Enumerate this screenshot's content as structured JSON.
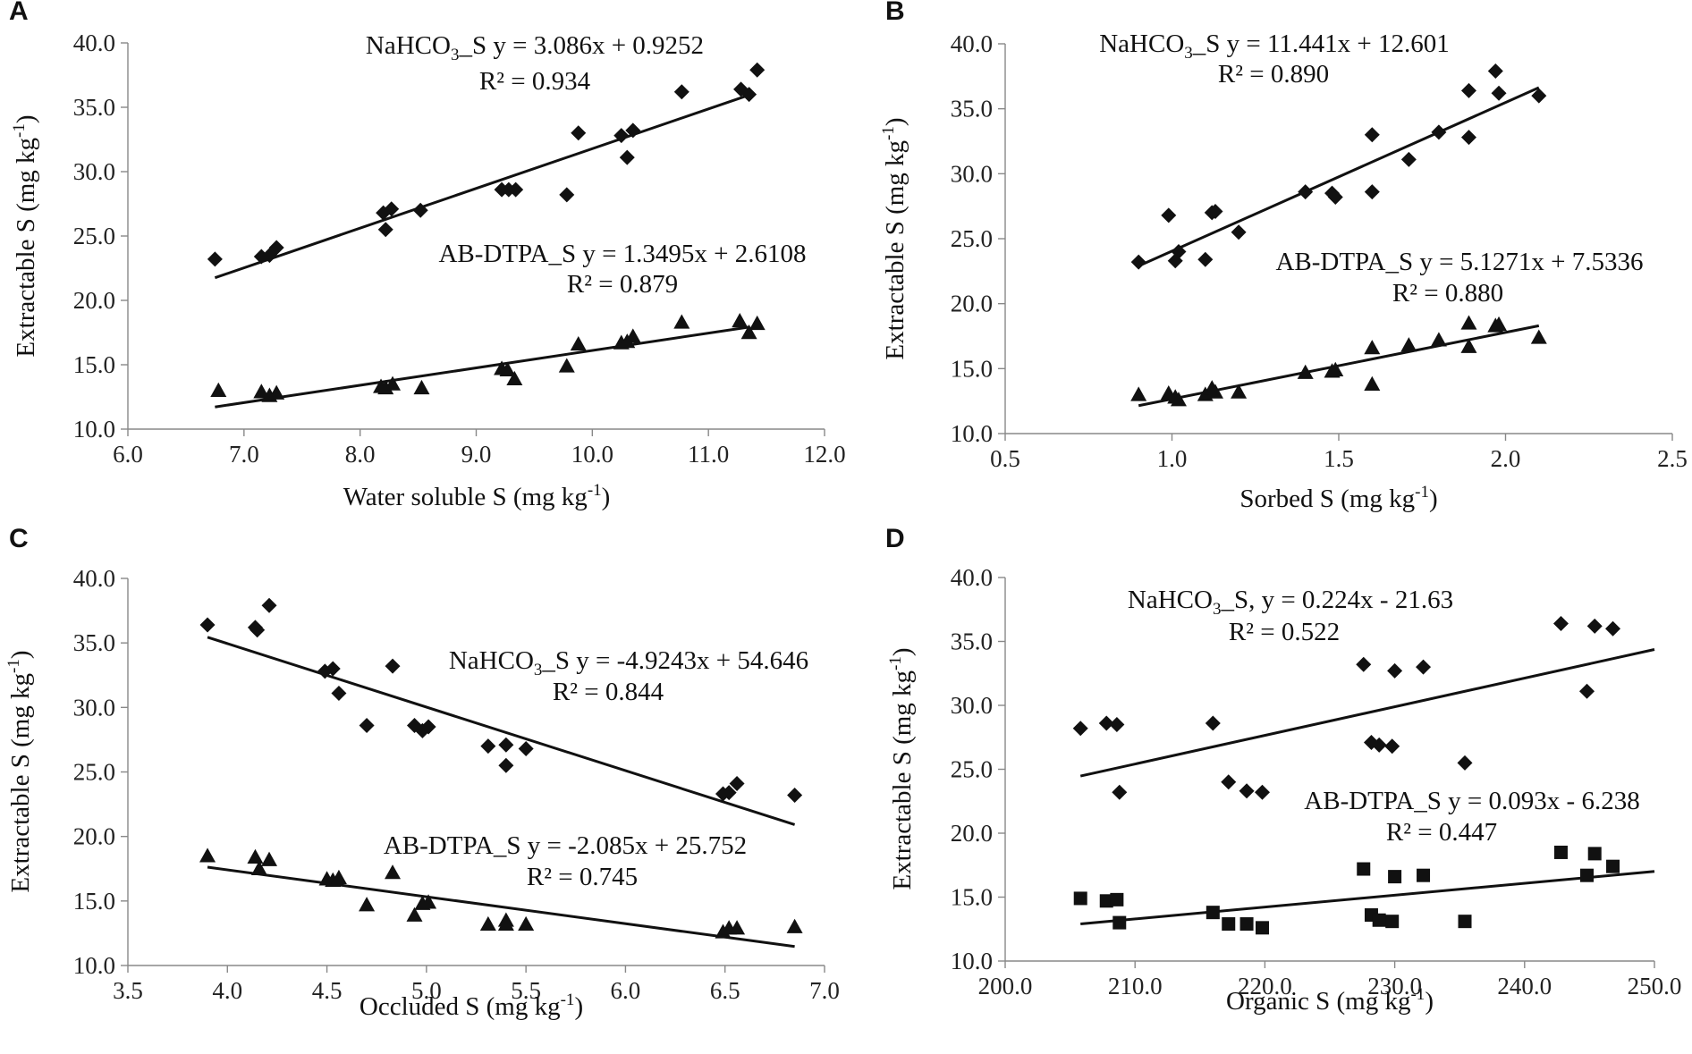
{
  "chart_data": [
    {
      "type": "scatter",
      "panel_label": "A",
      "xlabel": "Water soluble S (mg kg",
      "xlabel_sup": "-1",
      "xlabel_end": ")",
      "ylabel": "Extractable S (mg kg",
      "ylabel_sup": "-1",
      "ylabel_end": ")",
      "xlim": [
        6.0,
        12.0
      ],
      "ylim": [
        10.0,
        40.0
      ],
      "x_ticks": [
        "6.0",
        "7.0",
        "8.0",
        "9.0",
        "10.0",
        "11.0",
        "12.0"
      ],
      "y_ticks": [
        "10.0",
        "15.0",
        "20.0",
        "25.0",
        "30.0",
        "35.0",
        "40.0"
      ],
      "series": [
        {
          "name": "NaHCO3_S",
          "marker": "diamond",
          "eq_text": "NaHCO",
          "eq_sub": "3",
          "eq_rest": "_S y = 3.086x + 0.9252",
          "r2_text": "R² = 0.934",
          "slope": 3.086,
          "intercept": 0.9252,
          "fit_range": [
            6.75,
            11.35
          ],
          "points": [
            [
              6.75,
              23.2
            ],
            [
              7.15,
              23.4
            ],
            [
              7.22,
              23.5
            ],
            [
              7.28,
              24.1
            ],
            [
              8.2,
              26.8
            ],
            [
              8.22,
              25.5
            ],
            [
              8.27,
              27.1
            ],
            [
              8.52,
              27.0
            ],
            [
              9.22,
              28.6
            ],
            [
              9.28,
              28.6
            ],
            [
              9.34,
              28.6
            ],
            [
              9.78,
              28.2
            ],
            [
              9.88,
              33.0
            ],
            [
              10.25,
              32.8
            ],
            [
              10.3,
              31.1
            ],
            [
              10.35,
              33.2
            ],
            [
              10.77,
              36.2
            ],
            [
              11.28,
              36.4
            ],
            [
              11.35,
              36.0
            ],
            [
              11.42,
              37.9
            ]
          ]
        },
        {
          "name": "AB-DTPA_S",
          "marker": "triangle",
          "eq_text": "AB-DTPA_S y = 1.3495x + 2.6108",
          "r2_text": "R² = 0.879",
          "slope": 1.3495,
          "intercept": 2.6108,
          "fit_range": [
            6.75,
            11.35
          ],
          "points": [
            [
              6.78,
              13.0
            ],
            [
              7.15,
              12.9
            ],
            [
              7.22,
              12.6
            ],
            [
              7.28,
              12.8
            ],
            [
              8.18,
              13.3
            ],
            [
              8.22,
              13.2
            ],
            [
              8.28,
              13.5
            ],
            [
              8.53,
              13.2
            ],
            [
              9.22,
              14.7
            ],
            [
              9.27,
              14.6
            ],
            [
              9.33,
              13.9
            ],
            [
              9.78,
              14.9
            ],
            [
              9.88,
              16.6
            ],
            [
              10.25,
              16.7
            ],
            [
              10.3,
              16.8
            ],
            [
              10.35,
              17.2
            ],
            [
              10.77,
              18.3
            ],
            [
              11.27,
              18.4
            ],
            [
              11.35,
              17.5
            ],
            [
              11.42,
              18.2
            ]
          ]
        }
      ]
    },
    {
      "type": "scatter",
      "panel_label": "B",
      "xlabel": "Sorbed S (mg kg",
      "xlabel_sup": "-1",
      "xlabel_end": ")",
      "ylabel": "Extractable S (mg kg",
      "ylabel_sup": "-1",
      "ylabel_end": ")",
      "xlim": [
        0.5,
        2.5
      ],
      "ylim": [
        10.0,
        40.0
      ],
      "x_ticks": [
        "0.5",
        "1.0",
        "1.5",
        "2.0",
        "2.5"
      ],
      "y_ticks": [
        "10.0",
        "15.0",
        "20.0",
        "25.0",
        "30.0",
        "35.0",
        "40.0"
      ],
      "series": [
        {
          "name": "NaHCO3_S",
          "marker": "diamond",
          "eq_text": "NaHCO",
          "eq_sub": "3",
          "eq_rest": "_S y = 11.441x + 12.601",
          "r2_text": "R² = 0.890",
          "slope": 11.441,
          "intercept": 12.601,
          "fit_range": [
            0.9,
            2.1
          ],
          "points": [
            [
              0.9,
              23.2
            ],
            [
              0.99,
              26.8
            ],
            [
              1.01,
              23.3
            ],
            [
              1.02,
              24.0
            ],
            [
              1.1,
              23.4
            ],
            [
              1.12,
              27.0
            ],
            [
              1.13,
              27.1
            ],
            [
              1.2,
              25.5
            ],
            [
              1.4,
              28.6
            ],
            [
              1.48,
              28.5
            ],
            [
              1.49,
              28.2
            ],
            [
              1.6,
              33.0
            ],
            [
              1.6,
              28.6
            ],
            [
              1.71,
              31.1
            ],
            [
              1.8,
              33.2
            ],
            [
              1.89,
              36.4
            ],
            [
              1.89,
              32.8
            ],
            [
              1.97,
              37.9
            ],
            [
              1.98,
              36.2
            ],
            [
              2.1,
              36.0
            ]
          ]
        },
        {
          "name": "AB-DTPA_S",
          "marker": "triangle",
          "eq_text": "AB-DTPA_S y = 5.1271x + 7.5336",
          "r2_text": "R² = 0.880",
          "slope": 5.1271,
          "intercept": 7.5336,
          "fit_range": [
            0.9,
            2.1
          ],
          "points": [
            [
              0.9,
              13.0
            ],
            [
              0.99,
              13.1
            ],
            [
              1.01,
              12.8
            ],
            [
              1.02,
              12.6
            ],
            [
              1.1,
              13.0
            ],
            [
              1.12,
              13.5
            ],
            [
              1.13,
              13.2
            ],
            [
              1.2,
              13.2
            ],
            [
              1.4,
              14.7
            ],
            [
              1.48,
              14.8
            ],
            [
              1.49,
              14.9
            ],
            [
              1.6,
              16.6
            ],
            [
              1.6,
              13.8
            ],
            [
              1.71,
              16.8
            ],
            [
              1.8,
              17.2
            ],
            [
              1.89,
              18.5
            ],
            [
              1.89,
              16.7
            ],
            [
              1.97,
              18.3
            ],
            [
              1.98,
              18.4
            ],
            [
              2.1,
              17.4
            ]
          ]
        }
      ]
    },
    {
      "type": "scatter",
      "panel_label": "C",
      "xlabel": "Occluded S (mg kg",
      "xlabel_sup": "-1",
      "xlabel_end": ")",
      "ylabel": "Extractable S (mg kg",
      "ylabel_sup": "-1",
      "ylabel_end": ")",
      "xlim": [
        3.5,
        7.0
      ],
      "ylim": [
        10.0,
        40.0
      ],
      "x_ticks": [
        "3.5",
        "4.0",
        "4.5",
        "5.0",
        "5.5",
        "6.0",
        "6.5",
        "7.0"
      ],
      "y_ticks": [
        "10.0",
        "15.0",
        "20.0",
        "25.0",
        "30.0",
        "35.0",
        "40.0"
      ],
      "series": [
        {
          "name": "NaHCO3_S",
          "marker": "diamond",
          "eq_text": "NaHCO",
          "eq_sub": "3",
          "eq_rest": "_S y = -4.9243x + 54.646",
          "r2_text": "R² = 0.844",
          "slope": -4.9243,
          "intercept": 54.646,
          "fit_range": [
            3.9,
            6.85
          ],
          "points": [
            [
              3.9,
              36.4
            ],
            [
              4.14,
              36.2
            ],
            [
              4.15,
              36.0
            ],
            [
              4.21,
              37.9
            ],
            [
              4.49,
              32.8
            ],
            [
              4.53,
              33.0
            ],
            [
              4.56,
              31.1
            ],
            [
              4.7,
              28.6
            ],
            [
              4.83,
              33.2
            ],
            [
              4.94,
              28.6
            ],
            [
              4.98,
              28.2
            ],
            [
              5.01,
              28.5
            ],
            [
              5.31,
              27.0
            ],
            [
              5.4,
              27.1
            ],
            [
              5.4,
              25.5
            ],
            [
              5.5,
              26.8
            ],
            [
              6.49,
              23.3
            ],
            [
              6.52,
              23.4
            ],
            [
              6.56,
              24.1
            ],
            [
              6.85,
              23.2
            ]
          ]
        },
        {
          "name": "AB-DTPA_S",
          "marker": "triangle",
          "eq_text": "AB-DTPA_S y = -2.085x + 25.752",
          "r2_text": "R² = 0.745",
          "slope": -2.085,
          "intercept": 25.752,
          "fit_range": [
            3.9,
            6.85
          ],
          "points": [
            [
              3.9,
              18.5
            ],
            [
              4.14,
              18.4
            ],
            [
              4.16,
              17.5
            ],
            [
              4.21,
              18.2
            ],
            [
              4.5,
              16.7
            ],
            [
              4.53,
              16.6
            ],
            [
              4.56,
              16.8
            ],
            [
              4.7,
              14.7
            ],
            [
              4.83,
              17.2
            ],
            [
              4.94,
              13.9
            ],
            [
              4.98,
              14.8
            ],
            [
              5.01,
              14.9
            ],
            [
              5.31,
              13.2
            ],
            [
              5.4,
              13.5
            ],
            [
              5.4,
              13.2
            ],
            [
              5.5,
              13.2
            ],
            [
              6.49,
              12.6
            ],
            [
              6.52,
              12.9
            ],
            [
              6.56,
              12.9
            ],
            [
              6.85,
              13.0
            ]
          ]
        }
      ]
    },
    {
      "type": "scatter",
      "panel_label": "D",
      "xlabel": "Organic S (mg kg",
      "xlabel_sup": "-1",
      "xlabel_end": ")",
      "ylabel": "Extractable S (mg kg",
      "ylabel_sup": "-1",
      "ylabel_end": ")",
      "xlim": [
        200.0,
        250.0
      ],
      "ylim": [
        10.0,
        40.0
      ],
      "x_ticks": [
        "200.0",
        "210.0",
        "220.0",
        "230.0",
        "240.0",
        "250.0"
      ],
      "y_ticks": [
        "10.0",
        "15.0",
        "20.0",
        "25.0",
        "30.0",
        "35.0",
        "40.0"
      ],
      "series": [
        {
          "name": "NaHCO3_S",
          "marker": "diamond",
          "eq_text": "NaHCO",
          "eq_sub": "3",
          "eq_rest": "_S, y = 0.224x - 21.63",
          "r2_text": "R² = 0.522",
          "slope": 0.224,
          "intercept": -21.63,
          "fit_range": [
            205.8,
            250.0
          ],
          "points": [
            [
              205.8,
              28.2
            ],
            [
              207.8,
              28.6
            ],
            [
              208.6,
              28.5
            ],
            [
              208.8,
              23.2
            ],
            [
              216.0,
              28.6
            ],
            [
              217.2,
              24.0
            ],
            [
              218.6,
              23.3
            ],
            [
              219.8,
              23.2
            ],
            [
              227.6,
              33.2
            ],
            [
              228.2,
              27.1
            ],
            [
              228.8,
              26.9
            ],
            [
              229.8,
              26.8
            ],
            [
              230.0,
              32.7
            ],
            [
              232.2,
              33.0
            ],
            [
              235.4,
              25.5
            ],
            [
              242.8,
              36.4
            ],
            [
              244.8,
              31.1
            ],
            [
              245.4,
              36.2
            ],
            [
              246.8,
              36.0
            ]
          ]
        },
        {
          "name": "AB-DTPA_S",
          "marker": "square",
          "eq_text": "AB-DTPA_S y = 0.093x - 6.238",
          "r2_text": "R² = 0.447",
          "slope": 0.093,
          "intercept": -6.238,
          "fit_range": [
            205.8,
            250.0
          ],
          "points": [
            [
              205.8,
              14.9
            ],
            [
              207.8,
              14.7
            ],
            [
              208.6,
              14.8
            ],
            [
              208.8,
              13.0
            ],
            [
              216.0,
              13.8
            ],
            [
              217.2,
              12.9
            ],
            [
              218.6,
              12.9
            ],
            [
              219.8,
              12.6
            ],
            [
              227.6,
              17.2
            ],
            [
              228.2,
              13.6
            ],
            [
              228.8,
              13.2
            ],
            [
              229.8,
              13.1
            ],
            [
              230.0,
              16.6
            ],
            [
              232.2,
              16.7
            ],
            [
              235.4,
              13.1
            ],
            [
              242.8,
              18.5
            ],
            [
              244.8,
              16.7
            ],
            [
              245.4,
              18.4
            ],
            [
              246.8,
              17.4
            ]
          ]
        }
      ]
    }
  ]
}
